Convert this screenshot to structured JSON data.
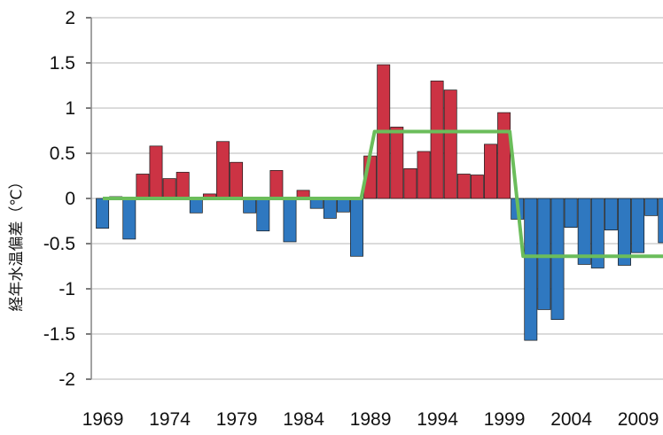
{
  "chart_data": {
    "type": "bar",
    "title": "",
    "ylabel": "経年水温偏差（℃）",
    "xlabel": "",
    "ylim": [
      -2,
      2
    ],
    "yticks": [
      "2",
      "1.5",
      "1",
      "0.5",
      "0",
      "-0.5",
      "-1",
      "-1.5",
      "-2"
    ],
    "xticks": [
      "1969",
      "1974",
      "1979",
      "1984",
      "1989",
      "1994",
      "1999",
      "2004",
      "2009"
    ],
    "grid": true,
    "colors": {
      "positive": "#cc3344",
      "negative": "#2f78c0",
      "trend": "#6bbd5b"
    },
    "years": [
      1969,
      1970,
      1971,
      1972,
      1973,
      1974,
      1975,
      1976,
      1977,
      1978,
      1979,
      1980,
      1981,
      1982,
      1983,
      1984,
      1985,
      1986,
      1987,
      1988,
      1989,
      1990,
      1991,
      1992,
      1993,
      1994,
      1995,
      1996,
      1997,
      1998,
      1999,
      2000,
      2001,
      2002,
      2003,
      2004,
      2005,
      2006,
      2007,
      2008,
      2009,
      2010,
      2011
    ],
    "values": [
      -0.33,
      0.02,
      -0.45,
      0.27,
      0.58,
      0.22,
      0.29,
      -0.16,
      0.05,
      0.63,
      0.4,
      -0.16,
      -0.36,
      0.31,
      -0.48,
      0.09,
      -0.11,
      -0.22,
      -0.15,
      -0.64,
      0.47,
      1.48,
      0.79,
      0.33,
      0.52,
      1.3,
      1.2,
      0.27,
      0.26,
      0.6,
      0.95,
      -0.23,
      -1.57,
      -1.23,
      -1.34,
      -0.32,
      -0.73,
      -0.77,
      -0.35,
      -0.74,
      -0.6,
      -0.19,
      -0.49
    ],
    "trend": [
      {
        "x": 1969,
        "y": 0.0
      },
      {
        "x": 1988.3,
        "y": 0.0
      },
      {
        "x": 1989.3,
        "y": 0.74
      },
      {
        "x": 1999.4,
        "y": 0.74
      },
      {
        "x": 2000.4,
        "y": -0.64
      },
      {
        "x": 2011,
        "y": -0.64
      }
    ]
  }
}
